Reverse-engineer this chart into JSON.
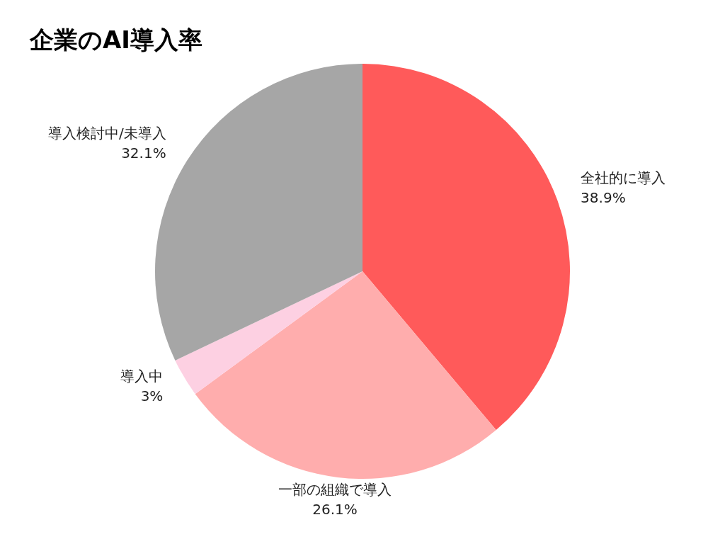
{
  "chart_data": {
    "type": "pie",
    "title": "企業のAI導入率",
    "categories": [
      "全社的に導入",
      "一部の組織で導入",
      "導入中",
      "導入検討中/未導入"
    ],
    "values": [
      38.9,
      26.1,
      3,
      32.1
    ],
    "colors": [
      "#ff5a5a",
      "#ffadad",
      "#fdd0e2",
      "#a6a6a6"
    ],
    "value_labels": [
      "38.9%",
      "26.1%",
      "3%",
      "32.1%"
    ]
  }
}
